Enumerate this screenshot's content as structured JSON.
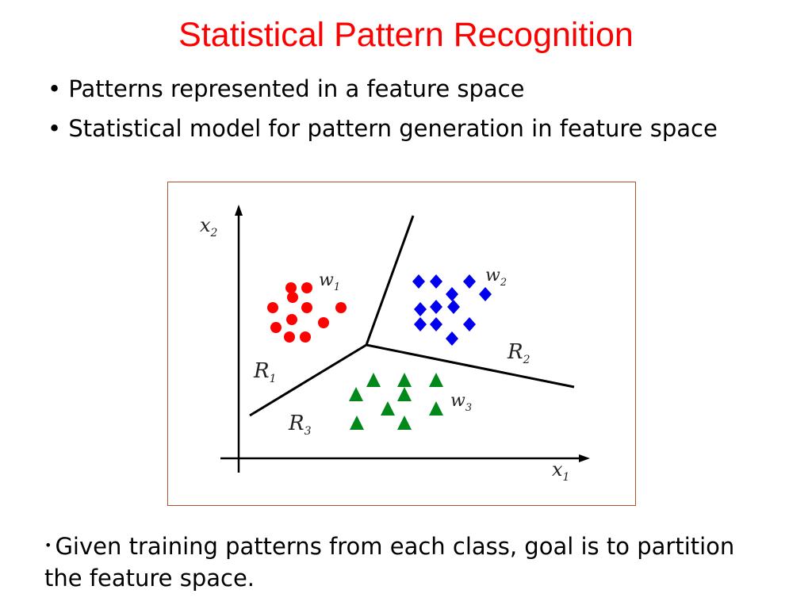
{
  "title": "Statistical Pattern Recognition",
  "bullets": [
    {
      "marker": "•",
      "text": "Patterns represented in a feature space"
    },
    {
      "marker": "•",
      "text": "Statistical model for pattern generation in feature space"
    }
  ],
  "footer_bullet": {
    "marker": "•",
    "text": "Given training patterns from each class, goal is to partition the feature space."
  },
  "figure": {
    "axis_labels": {
      "x": "x",
      "x_sub": "1",
      "y": "x",
      "y_sub": "2"
    },
    "classes": [
      {
        "label": "w",
        "sub": "1",
        "marker": "circle",
        "color": "#ff0000"
      },
      {
        "label": "w",
        "sub": "2",
        "marker": "diamond",
        "color": "#0000ee"
      },
      {
        "label": "w",
        "sub": "3",
        "marker": "triangle",
        "color": "#00891a"
      }
    ],
    "regions": [
      {
        "label": "R",
        "sub": "1"
      },
      {
        "label": "R",
        "sub": "2"
      },
      {
        "label": "R",
        "sub": "3"
      }
    ]
  },
  "colors": {
    "title": "#ff0000",
    "text": "#000000",
    "frame_border": "#b0522a",
    "boundary": "#000000"
  }
}
